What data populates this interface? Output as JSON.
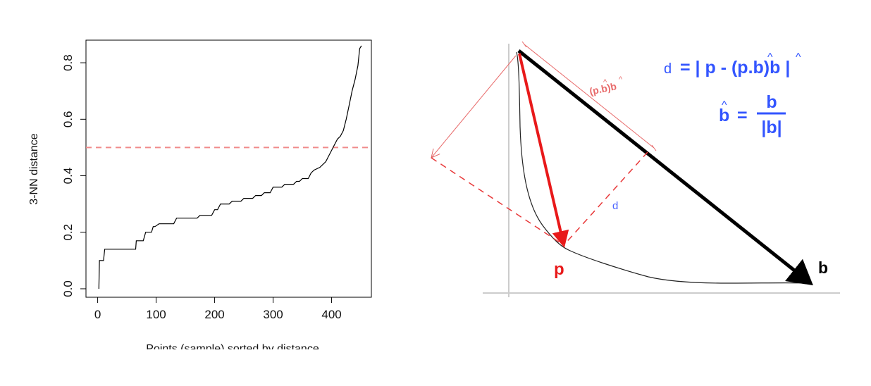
{
  "chart_data": [
    {
      "type": "line",
      "title": "",
      "xlabel": "Points (sample) sorted by distance",
      "ylabel": "3-NN distance",
      "xlim": [
        -20,
        468
      ],
      "ylim": [
        -0.03,
        0.88
      ],
      "x_ticks": [
        0,
        100,
        200,
        300,
        400
      ],
      "x_tick_labels": [
        "0",
        "100",
        "200",
        "300",
        "400"
      ],
      "y_ticks": [
        0.0,
        0.2,
        0.4,
        0.6,
        0.8
      ],
      "y_tick_labels": [
        "0.0",
        "0.2",
        "0.4",
        "0.6",
        "0.8"
      ],
      "grid": false,
      "series": [
        {
          "x": [
            2,
            3,
            10,
            12,
            65,
            66,
            78,
            82,
            92,
            95,
            98,
            105,
            130,
            135,
            170,
            175,
            195,
            200,
            205,
            210,
            225,
            230,
            245,
            250,
            265,
            270,
            280,
            285,
            295,
            300,
            315,
            320,
            335,
            340,
            345,
            350,
            360,
            365,
            370,
            380,
            390,
            395,
            400,
            405,
            410,
            415,
            420,
            425,
            430,
            435,
            440,
            445,
            448,
            451
          ],
          "y": [
            0.0,
            0.1,
            0.1,
            0.14,
            0.14,
            0.17,
            0.17,
            0.2,
            0.2,
            0.22,
            0.22,
            0.23,
            0.23,
            0.25,
            0.25,
            0.26,
            0.26,
            0.28,
            0.28,
            0.3,
            0.3,
            0.31,
            0.31,
            0.32,
            0.32,
            0.33,
            0.33,
            0.34,
            0.34,
            0.36,
            0.36,
            0.37,
            0.37,
            0.38,
            0.38,
            0.39,
            0.39,
            0.41,
            0.42,
            0.43,
            0.45,
            0.47,
            0.49,
            0.51,
            0.53,
            0.54,
            0.56,
            0.6,
            0.65,
            0.7,
            0.74,
            0.79,
            0.85,
            0.93
          ]
        }
      ],
      "threshold_line": {
        "y": 0.5,
        "color": "#ef8f8f"
      }
    },
    {
      "type": "diagram",
      "formula_line1": "= | p - (p.b)b |",
      "formula_d": "d",
      "formula_line2_lhs": "b",
      "formula_line2_eq": "=",
      "formula_numerator": "b",
      "formula_denominator": "|b|",
      "hat_symbol": "^",
      "projection_label": "(p.b)b",
      "distance_label": "d",
      "point_label": "p",
      "vector_label": "b",
      "colors": {
        "black": "#000000",
        "red": "#e8191a",
        "blue": "#3355ff",
        "axis": "#cccccc"
      }
    }
  ]
}
